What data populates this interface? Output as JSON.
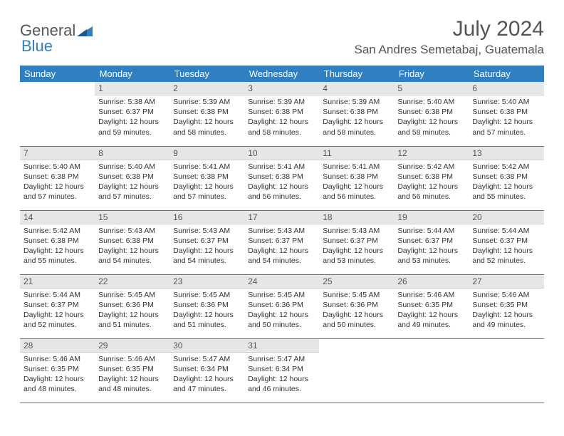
{
  "logo": {
    "word1": "General",
    "word2": "Blue"
  },
  "title": "July 2024",
  "location": "San Andres Semetabaj, Guatemala",
  "colors": {
    "header_bg": "#2f7fc1",
    "header_text": "#ffffff",
    "daynum_bg": "#e6e6e6",
    "body_text": "#333333",
    "rule": "#2f7fc1"
  },
  "day_headers": [
    "Sunday",
    "Monday",
    "Tuesday",
    "Wednesday",
    "Thursday",
    "Friday",
    "Saturday"
  ],
  "weeks": [
    [
      null,
      {
        "n": "1",
        "sr": "5:38 AM",
        "ss": "6:37 PM",
        "dl": "12 hours and 59 minutes."
      },
      {
        "n": "2",
        "sr": "5:39 AM",
        "ss": "6:38 PM",
        "dl": "12 hours and 58 minutes."
      },
      {
        "n": "3",
        "sr": "5:39 AM",
        "ss": "6:38 PM",
        "dl": "12 hours and 58 minutes."
      },
      {
        "n": "4",
        "sr": "5:39 AM",
        "ss": "6:38 PM",
        "dl": "12 hours and 58 minutes."
      },
      {
        "n": "5",
        "sr": "5:40 AM",
        "ss": "6:38 PM",
        "dl": "12 hours and 58 minutes."
      },
      {
        "n": "6",
        "sr": "5:40 AM",
        "ss": "6:38 PM",
        "dl": "12 hours and 57 minutes."
      }
    ],
    [
      {
        "n": "7",
        "sr": "5:40 AM",
        "ss": "6:38 PM",
        "dl": "12 hours and 57 minutes."
      },
      {
        "n": "8",
        "sr": "5:40 AM",
        "ss": "6:38 PM",
        "dl": "12 hours and 57 minutes."
      },
      {
        "n": "9",
        "sr": "5:41 AM",
        "ss": "6:38 PM",
        "dl": "12 hours and 57 minutes."
      },
      {
        "n": "10",
        "sr": "5:41 AM",
        "ss": "6:38 PM",
        "dl": "12 hours and 56 minutes."
      },
      {
        "n": "11",
        "sr": "5:41 AM",
        "ss": "6:38 PM",
        "dl": "12 hours and 56 minutes."
      },
      {
        "n": "12",
        "sr": "5:42 AM",
        "ss": "6:38 PM",
        "dl": "12 hours and 56 minutes."
      },
      {
        "n": "13",
        "sr": "5:42 AM",
        "ss": "6:38 PM",
        "dl": "12 hours and 55 minutes."
      }
    ],
    [
      {
        "n": "14",
        "sr": "5:42 AM",
        "ss": "6:38 PM",
        "dl": "12 hours and 55 minutes."
      },
      {
        "n": "15",
        "sr": "5:43 AM",
        "ss": "6:38 PM",
        "dl": "12 hours and 54 minutes."
      },
      {
        "n": "16",
        "sr": "5:43 AM",
        "ss": "6:37 PM",
        "dl": "12 hours and 54 minutes."
      },
      {
        "n": "17",
        "sr": "5:43 AM",
        "ss": "6:37 PM",
        "dl": "12 hours and 54 minutes."
      },
      {
        "n": "18",
        "sr": "5:43 AM",
        "ss": "6:37 PM",
        "dl": "12 hours and 53 minutes."
      },
      {
        "n": "19",
        "sr": "5:44 AM",
        "ss": "6:37 PM",
        "dl": "12 hours and 53 minutes."
      },
      {
        "n": "20",
        "sr": "5:44 AM",
        "ss": "6:37 PM",
        "dl": "12 hours and 52 minutes."
      }
    ],
    [
      {
        "n": "21",
        "sr": "5:44 AM",
        "ss": "6:37 PM",
        "dl": "12 hours and 52 minutes."
      },
      {
        "n": "22",
        "sr": "5:45 AM",
        "ss": "6:36 PM",
        "dl": "12 hours and 51 minutes."
      },
      {
        "n": "23",
        "sr": "5:45 AM",
        "ss": "6:36 PM",
        "dl": "12 hours and 51 minutes."
      },
      {
        "n": "24",
        "sr": "5:45 AM",
        "ss": "6:36 PM",
        "dl": "12 hours and 50 minutes."
      },
      {
        "n": "25",
        "sr": "5:45 AM",
        "ss": "6:36 PM",
        "dl": "12 hours and 50 minutes."
      },
      {
        "n": "26",
        "sr": "5:46 AM",
        "ss": "6:35 PM",
        "dl": "12 hours and 49 minutes."
      },
      {
        "n": "27",
        "sr": "5:46 AM",
        "ss": "6:35 PM",
        "dl": "12 hours and 49 minutes."
      }
    ],
    [
      {
        "n": "28",
        "sr": "5:46 AM",
        "ss": "6:35 PM",
        "dl": "12 hours and 48 minutes."
      },
      {
        "n": "29",
        "sr": "5:46 AM",
        "ss": "6:35 PM",
        "dl": "12 hours and 48 minutes."
      },
      {
        "n": "30",
        "sr": "5:47 AM",
        "ss": "6:34 PM",
        "dl": "12 hours and 47 minutes."
      },
      {
        "n": "31",
        "sr": "5:47 AM",
        "ss": "6:34 PM",
        "dl": "12 hours and 46 minutes."
      },
      null,
      null,
      null
    ]
  ],
  "labels": {
    "sunrise": "Sunrise: ",
    "sunset": "Sunset: ",
    "daylight": "Daylight: "
  }
}
